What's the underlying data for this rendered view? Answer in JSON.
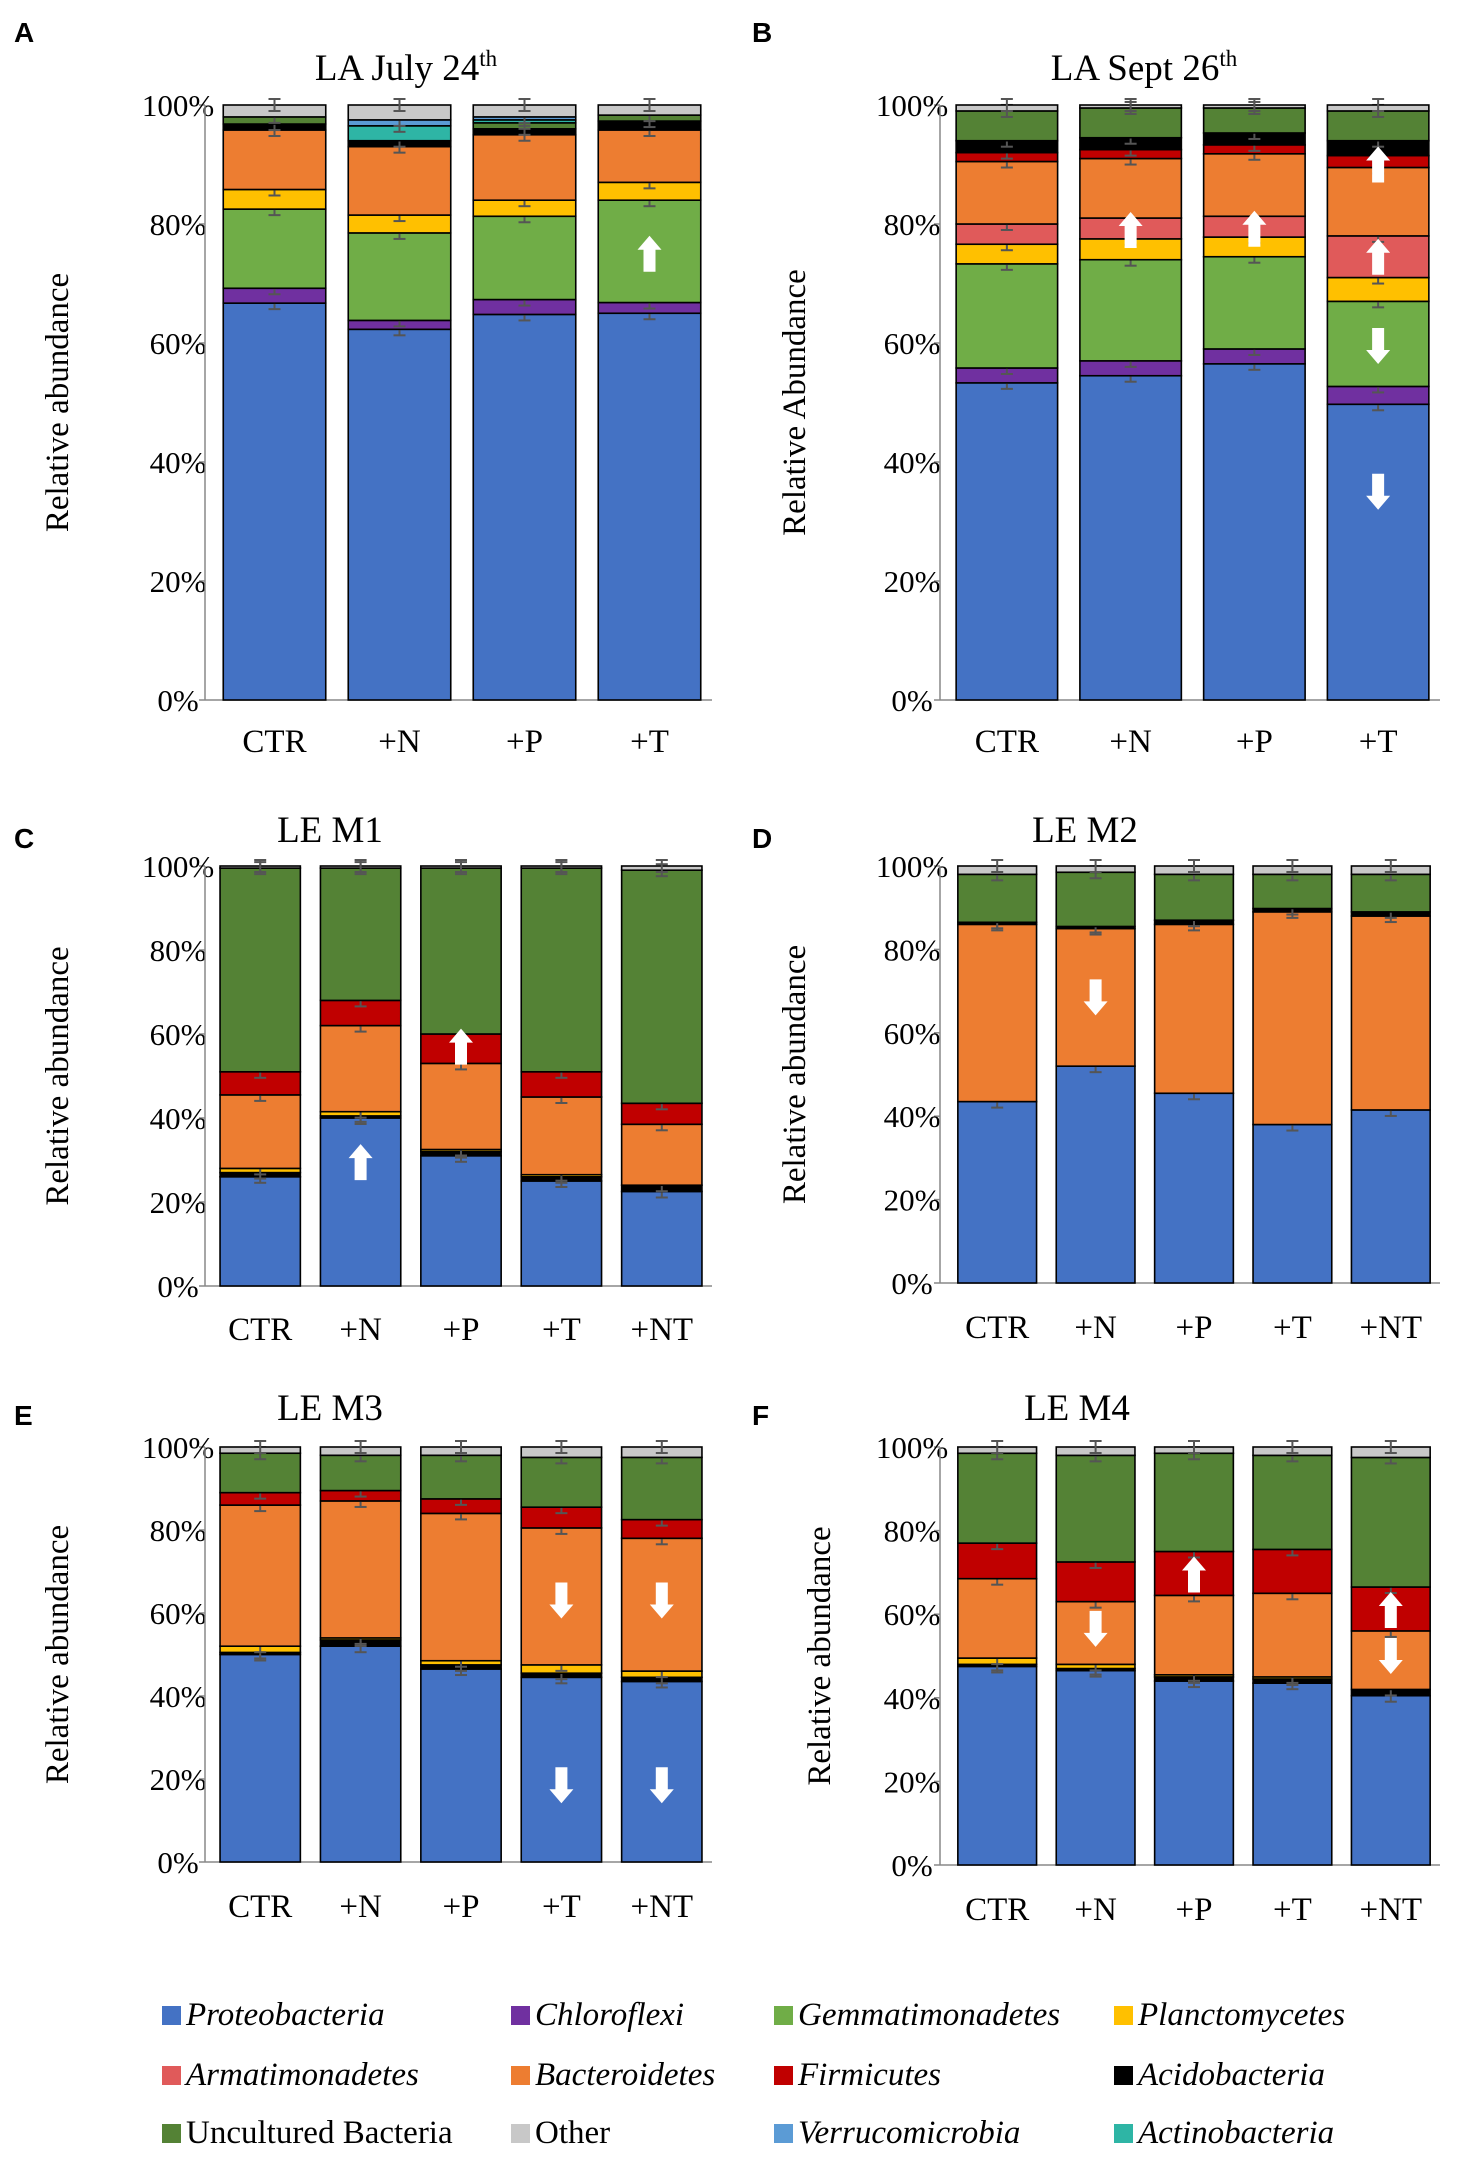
{
  "legend": [
    {
      "key": "proteobacteria",
      "label": "Proteobacteria",
      "color": "#4472C4",
      "italic": true
    },
    {
      "key": "chloroflexi",
      "label": "Chloroflexi",
      "color": "#7030A0",
      "italic": true
    },
    {
      "key": "gemmatimonadetes",
      "label": "Gemmatimonadetes",
      "color": "#70AD47",
      "italic": true
    },
    {
      "key": "planctomycetes",
      "label": "Planctomycetes",
      "color": "#FFC000",
      "italic": true
    },
    {
      "key": "armatimonadetes",
      "label": "Armatimonadetes",
      "color": "#E05A5A",
      "italic": true
    },
    {
      "key": "bacteroidetes",
      "label": "Bacteroidetes",
      "color": "#ED7D31",
      "italic": true
    },
    {
      "key": "firmicutes",
      "label": "Firmicutes",
      "color": "#C00000",
      "italic": true
    },
    {
      "key": "acidobacteria",
      "label": "Acidobacteria",
      "color": "#000000",
      "italic": true
    },
    {
      "key": "uncultured",
      "label": "Uncultured Bacteria",
      "color": "#548235",
      "italic": false
    },
    {
      "key": "other",
      "label": "Other",
      "color": "#C8C8C8",
      "italic": false
    },
    {
      "key": "verrucomicrobia",
      "label": "Verrucomicrobia",
      "color": "#5B9BD5",
      "italic": true
    },
    {
      "key": "actinobacteria",
      "label": "Actinobacteria",
      "color": "#2EB5A5",
      "italic": true
    }
  ],
  "chart_data": [
    {
      "panel": "A",
      "title": "LA July 24",
      "title_sup": "th",
      "type": "bar",
      "stacked": true,
      "ylabel": "Relative abundance",
      "ylim": [
        0,
        100
      ],
      "yticks": [
        "0%",
        "20%",
        "40%",
        "60%",
        "80%",
        "100%"
      ],
      "categories": [
        "CTR",
        "+N",
        "+P",
        "+T"
      ],
      "series": [
        {
          "key": "proteobacteria",
          "values": [
            66.7,
            62.3,
            64.8,
            65.0
          ]
        },
        {
          "key": "chloroflexi",
          "values": [
            2.5,
            1.5,
            2.5,
            1.8
          ]
        },
        {
          "key": "gemmatimonadetes",
          "values": [
            13.3,
            14.7,
            14.0,
            17.2
          ]
        },
        {
          "key": "planctomycetes",
          "values": [
            3.3,
            3.0,
            2.7,
            3.0
          ]
        },
        {
          "key": "bacteroidetes",
          "values": [
            10.0,
            11.5,
            11.0,
            8.8
          ]
        },
        {
          "key": "acidobacteria",
          "values": [
            1.0,
            1.0,
            1.0,
            1.5
          ]
        },
        {
          "key": "uncultured",
          "values": [
            1.2,
            0.0,
            1.0,
            1.0
          ]
        },
        {
          "key": "actinobacteria",
          "values": [
            0.0,
            2.5,
            0.5,
            0.0
          ]
        },
        {
          "key": "verrucomicrobia",
          "values": [
            0.0,
            1.0,
            0.5,
            0.0
          ]
        },
        {
          "key": "other",
          "values": [
            2.0,
            2.5,
            2.0,
            1.7
          ]
        }
      ],
      "arrows": [
        {
          "category": "+T",
          "at": 75,
          "dir": "up"
        }
      ]
    },
    {
      "panel": "B",
      "title": "LA Sept 26",
      "title_sup": "th",
      "type": "bar",
      "stacked": true,
      "ylabel": "Relative Abundance",
      "ylim": [
        0,
        100
      ],
      "yticks": [
        "0%",
        "20%",
        "40%",
        "60%",
        "80%",
        "100%"
      ],
      "categories": [
        "CTR",
        "+N",
        "+P",
        "+T"
      ],
      "series": [
        {
          "key": "proteobacteria",
          "values": [
            53.3,
            54.5,
            56.5,
            49.7
          ]
        },
        {
          "key": "chloroflexi",
          "values": [
            2.5,
            2.5,
            2.5,
            3.0
          ]
        },
        {
          "key": "gemmatimonadetes",
          "values": [
            17.5,
            17.0,
            15.5,
            14.3
          ]
        },
        {
          "key": "planctomycetes",
          "values": [
            3.3,
            3.5,
            3.3,
            4.0
          ]
        },
        {
          "key": "armatimonadetes",
          "values": [
            3.4,
            3.5,
            3.5,
            7.0
          ]
        },
        {
          "key": "bacteroidetes",
          "values": [
            10.5,
            10.0,
            10.5,
            11.5
          ]
        },
        {
          "key": "firmicutes",
          "values": [
            1.5,
            1.5,
            1.5,
            2.0
          ]
        },
        {
          "key": "acidobacteria",
          "values": [
            2.0,
            2.0,
            2.0,
            2.5
          ]
        },
        {
          "key": "uncultured",
          "values": [
            5.0,
            5.0,
            4.2,
            5.0
          ]
        },
        {
          "key": "other",
          "values": [
            1.0,
            0.5,
            0.5,
            1.0
          ]
        }
      ],
      "arrows": [
        {
          "category": "+N",
          "at": 79,
          "dir": "up"
        },
        {
          "category": "+P",
          "at": 79.2,
          "dir": "up"
        },
        {
          "category": "+T",
          "at": 74.5,
          "dir": "up"
        },
        {
          "category": "+T",
          "at": 90,
          "dir": "up"
        },
        {
          "category": "+T",
          "at": 59.5,
          "dir": "down"
        },
        {
          "category": "+T",
          "at": 35,
          "dir": "down"
        }
      ]
    },
    {
      "panel": "C",
      "title": "LE M1",
      "type": "bar",
      "stacked": true,
      "ylabel": "Relative abundance",
      "ylim": [
        0,
        100
      ],
      "yticks": [
        "0%",
        "20%",
        "40%",
        "60%",
        "80%",
        "100%"
      ],
      "categories": [
        "CTR",
        "+N",
        "+P",
        "+T",
        "+NT"
      ],
      "series": [
        {
          "key": "proteobacteria",
          "values": [
            26.0,
            40.0,
            31.0,
            25.0,
            22.5
          ]
        },
        {
          "key": "acidobacteria",
          "values": [
            1.0,
            0.5,
            1.0,
            1.0,
            1.5
          ]
        },
        {
          "key": "planctomycetes",
          "values": [
            1.0,
            1.0,
            0.5,
            0.5,
            0.0
          ]
        },
        {
          "key": "bacteroidetes",
          "values": [
            17.5,
            20.5,
            20.5,
            18.5,
            14.5
          ]
        },
        {
          "key": "firmicutes",
          "values": [
            5.5,
            6.0,
            7.0,
            6.0,
            5.0
          ]
        },
        {
          "key": "uncultured",
          "values": [
            48.5,
            31.5,
            39.5,
            48.5,
            55.5
          ]
        },
        {
          "key": "other",
          "values": [
            0.5,
            0.5,
            0.5,
            0.5,
            1.0
          ]
        }
      ],
      "arrows": [
        {
          "category": "+N",
          "at": 29.5,
          "dir": "up"
        },
        {
          "category": "+P",
          "at": 57,
          "dir": "up"
        }
      ]
    },
    {
      "panel": "D",
      "title": "LE M2",
      "type": "bar",
      "stacked": true,
      "ylabel": "Relative abundance",
      "ylim": [
        0,
        100
      ],
      "yticks": [
        "0%",
        "20%",
        "40%",
        "60%",
        "80%",
        "100%"
      ],
      "categories": [
        "CTR",
        "+N",
        "+P",
        "+T",
        "+NT"
      ],
      "series": [
        {
          "key": "proteobacteria",
          "values": [
            43.5,
            52.0,
            45.5,
            38.0,
            41.5
          ]
        },
        {
          "key": "bacteroidetes",
          "values": [
            42.5,
            33.0,
            40.5,
            51.0,
            46.5
          ]
        },
        {
          "key": "acidobacteria",
          "values": [
            0.5,
            0.5,
            1.0,
            0.8,
            1.0
          ]
        },
        {
          "key": "uncultured",
          "values": [
            11.5,
            13.0,
            11.0,
            8.2,
            9.0
          ]
        },
        {
          "key": "other",
          "values": [
            2.0,
            1.5,
            2.0,
            2.0,
            2.0
          ]
        }
      ],
      "arrows": [
        {
          "category": "+N",
          "at": 68.5,
          "dir": "down"
        }
      ]
    },
    {
      "panel": "E",
      "title": "LE M3",
      "type": "bar",
      "stacked": true,
      "ylabel": "Relative abundance",
      "ylim": [
        0,
        100
      ],
      "yticks": [
        "0%",
        "20%",
        "40%",
        "60%",
        "80%",
        "100%"
      ],
      "categories": [
        "CTR",
        "+N",
        "+P",
        "+T",
        "+NT"
      ],
      "series": [
        {
          "key": "proteobacteria",
          "values": [
            50.0,
            52.0,
            46.5,
            44.5,
            43.5
          ]
        },
        {
          "key": "acidobacteria",
          "values": [
            0.5,
            1.5,
            1.0,
            1.0,
            1.0
          ]
        },
        {
          "key": "planctomycetes",
          "values": [
            1.5,
            0.5,
            1.0,
            2.0,
            1.5
          ]
        },
        {
          "key": "bacteroidetes",
          "values": [
            34.0,
            33.0,
            35.5,
            33.0,
            32.0
          ]
        },
        {
          "key": "firmicutes",
          "values": [
            3.0,
            2.5,
            3.5,
            5.0,
            4.5
          ]
        },
        {
          "key": "uncultured",
          "values": [
            9.5,
            8.5,
            10.5,
            12.0,
            15.0
          ]
        },
        {
          "key": "other",
          "values": [
            1.5,
            2.0,
            2.0,
            2.5,
            2.5
          ]
        }
      ],
      "arrows": [
        {
          "category": "+T",
          "at": 63,
          "dir": "down"
        },
        {
          "category": "+NT",
          "at": 63,
          "dir": "down"
        },
        {
          "category": "+T",
          "at": 18.5,
          "dir": "down"
        },
        {
          "category": "+NT",
          "at": 18.5,
          "dir": "down"
        }
      ]
    },
    {
      "panel": "F",
      "title": "LE M4",
      "type": "bar",
      "stacked": true,
      "ylabel": "Relative abundance",
      "ylim": [
        0,
        100
      ],
      "yticks": [
        "0%",
        "20%",
        "40%",
        "60%",
        "80%",
        "100%"
      ],
      "categories": [
        "CTR",
        "+N",
        "+P",
        "+T",
        "+NT"
      ],
      "series": [
        {
          "key": "proteobacteria",
          "values": [
            47.5,
            46.5,
            44.0,
            43.5,
            40.5
          ]
        },
        {
          "key": "acidobacteria",
          "values": [
            0.5,
            0.5,
            1.0,
            1.0,
            1.5
          ]
        },
        {
          "key": "planctomycetes",
          "values": [
            1.5,
            1.0,
            0.5,
            0.5,
            0.0
          ]
        },
        {
          "key": "bacteroidetes",
          "values": [
            19.0,
            15.0,
            19.0,
            20.0,
            14.0
          ]
        },
        {
          "key": "firmicutes",
          "values": [
            8.5,
            9.5,
            10.5,
            10.5,
            10.5
          ]
        },
        {
          "key": "uncultured",
          "values": [
            21.5,
            25.5,
            23.5,
            22.5,
            31.0
          ]
        },
        {
          "key": "other",
          "values": [
            1.5,
            2.0,
            1.5,
            2.0,
            2.5
          ]
        }
      ],
      "arrows": [
        {
          "category": "+N",
          "at": 56.5,
          "dir": "down"
        },
        {
          "category": "+P",
          "at": 69.5,
          "dir": "up"
        },
        {
          "category": "+NT",
          "at": 61,
          "dir": "up"
        },
        {
          "category": "+NT",
          "at": 50,
          "dir": "down"
        }
      ]
    }
  ]
}
